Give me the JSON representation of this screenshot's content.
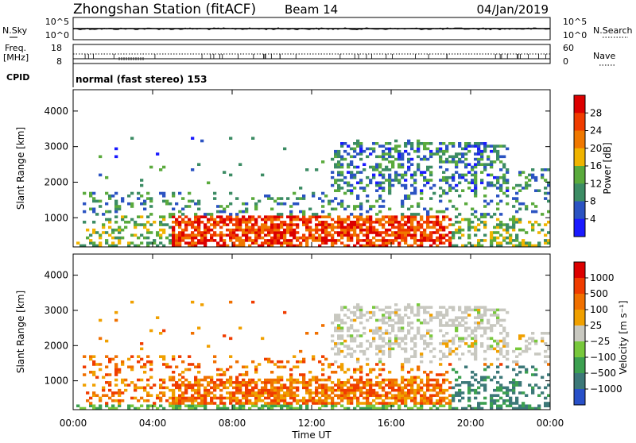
{
  "header": {
    "station": "Zhongshan Station (fitACF)",
    "beam": "Beam 14",
    "date": "04/Jan/2019"
  },
  "top_panels": {
    "nsky": {
      "label": "N.Sky",
      "ticks": [
        "10^5",
        "10^0"
      ],
      "right_label": "N.Search",
      "right_ticks": [
        "10^5",
        "10^0"
      ]
    },
    "freq": {
      "label_line1": "Freq.",
      "label_line2": "[MHz]",
      "ticks": [
        "18",
        "8"
      ],
      "right_label": "Nave",
      "right_ticks": [
        "60",
        "0"
      ]
    },
    "cpid": {
      "label": "CPID",
      "text": "normal (fast stereo) 153"
    }
  },
  "chart_data": [
    {
      "type": "heatmap",
      "name": "power",
      "ylabel": "Slant Range [km]",
      "yticks": [
        "1000",
        "2000",
        "3000",
        "4000"
      ],
      "ylim": [
        180,
        4600
      ],
      "colorbar": {
        "label": "Power [dB]",
        "ticks": [
          "4",
          "8",
          "12",
          "16",
          "20",
          "24",
          "28"
        ],
        "range": [
          0,
          32
        ],
        "colors": [
          "#1a1aff",
          "#2b53c2",
          "#3c8c64",
          "#5aaa3c",
          "#f0b400",
          "#f07800",
          "#f03c00",
          "#dc0000"
        ]
      }
    },
    {
      "type": "heatmap",
      "name": "velocity",
      "ylabel": "Slant Range [km]",
      "yticks": [
        "1000",
        "2000",
        "3000",
        "4000"
      ],
      "ylim": [
        180,
        4600
      ],
      "colorbar": {
        "label": "Velocity [m s⁻¹]",
        "ticks": [
          "1000",
          "500",
          "100",
          "25",
          "−25",
          "−100",
          "−500",
          "−1000"
        ],
        "colors": [
          "#2850c8",
          "#3c7878",
          "#3ca050",
          "#78c83c",
          "#c8c8c0",
          "#f0a000",
          "#f07000",
          "#f03c00",
          "#dc0000"
        ]
      }
    }
  ],
  "xaxis": {
    "ticks": [
      "00:00",
      "04:00",
      "08:00",
      "12:00",
      "16:00",
      "20:00",
      "00:00"
    ],
    "label": "Time UT"
  }
}
